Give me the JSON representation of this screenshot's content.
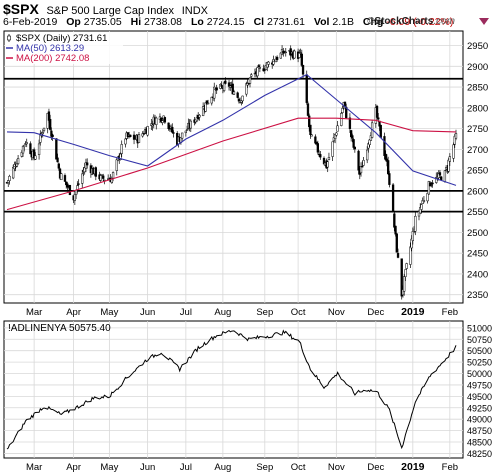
{
  "header": {
    "symbol": "$SPX",
    "name": "S&P 500 Large Cap Index",
    "exchange": "INDX",
    "date": "6-Feb-2019",
    "open_label": "Op",
    "open": "2735.05",
    "high_label": "Hi",
    "high": "2738.08",
    "low_label": "Lo",
    "low": "2724.15",
    "close_label": "Cl",
    "close": "2731.61",
    "volume_label": "Vol",
    "volume": "2.1B",
    "change_label": "Chg",
    "change": "-6.09 (-0.22%)",
    "change_color": "#c00000",
    "dropdown_icon": "triangle-down-icon"
  },
  "brand": {
    "prefix": "©",
    "name": "StockCharts",
    "suffix": ".com"
  },
  "legend": {
    "price": "$SPX (Daily) 2731.61",
    "ma50": "MA(50) 2613.29",
    "ma200": "MA(200) 2742.08"
  },
  "indicator_label": "!ADLINENYA 50575.40",
  "colors": {
    "candle": "#000000",
    "ma50": "#3333aa",
    "ma200": "#cc1144",
    "grid": "#d8d8d8"
  },
  "chart_data": [
    {
      "type": "line",
      "title": "$SPX (Daily) 2731.61",
      "x_tick_labels": [
        "Mar",
        "Apr",
        "May",
        "Jun",
        "Jul",
        "Aug",
        "Sep",
        "Oct",
        "Nov",
        "Dec",
        "2019",
        "Feb"
      ],
      "ylim": [
        2330,
        2985
      ],
      "y_ticks": [
        2350,
        2400,
        2450,
        2500,
        2550,
        2600,
        2650,
        2700,
        2750,
        2800,
        2850,
        2900,
        2950
      ],
      "grid": true,
      "horizontal_lines": [
        2870,
        2600,
        2550
      ],
      "series": [
        {
          "name": "$SPX (Daily) 2731.61",
          "style": "candlestick",
          "x": [
            "2018-02-07",
            "2018-02-22",
            "2018-03-01",
            "2018-03-12",
            "2018-03-22",
            "2018-04-02",
            "2018-04-12",
            "2018-04-24",
            "2018-05-03",
            "2018-05-14",
            "2018-05-24",
            "2018-06-06",
            "2018-06-14",
            "2018-06-25",
            "2018-07-06",
            "2018-07-16",
            "2018-07-25",
            "2018-08-06",
            "2018-08-15",
            "2018-08-24",
            "2018-09-04",
            "2018-09-20",
            "2018-10-03",
            "2018-10-11",
            "2018-10-24",
            "2018-11-07",
            "2018-11-20",
            "2018-12-03",
            "2018-12-13",
            "2018-12-24",
            "2019-01-04",
            "2019-01-16",
            "2019-01-28",
            "2019-02-06"
          ],
          "values": [
            2620,
            2720,
            2680,
            2785,
            2640,
            2585,
            2665,
            2630,
            2630,
            2730,
            2725,
            2770,
            2780,
            2720,
            2760,
            2800,
            2840,
            2855,
            2820,
            2875,
            2900,
            2935,
            2925,
            2730,
            2660,
            2810,
            2640,
            2790,
            2650,
            2351,
            2530,
            2620,
            2640,
            2731.61
          ]
        },
        {
          "name": "MA(50) 2613.29",
          "x": [
            "2018-02-07",
            "2018-03-01",
            "2018-04-02",
            "2018-05-01",
            "2018-06-01",
            "2018-07-02",
            "2018-08-01",
            "2018-09-04",
            "2018-10-08",
            "2018-11-01",
            "2018-12-03",
            "2019-01-02",
            "2019-02-06"
          ],
          "values": [
            2742,
            2740,
            2712,
            2685,
            2660,
            2725,
            2770,
            2830,
            2880,
            2820,
            2740,
            2648,
            2613.29
          ]
        },
        {
          "name": "MA(200) 2742.08",
          "x": [
            "2018-02-07",
            "2018-04-02",
            "2018-06-01",
            "2018-08-01",
            "2018-10-01",
            "2018-11-01",
            "2018-12-03",
            "2019-01-02",
            "2019-02-06"
          ],
          "values": [
            2555,
            2600,
            2655,
            2720,
            2775,
            2775,
            2770,
            2745,
            2742.08
          ]
        }
      ]
    },
    {
      "type": "line",
      "title": "!ADLINENYA 50575.40",
      "x_tick_labels": [
        "Mar",
        "Apr",
        "May",
        "Jun",
        "Jul",
        "Aug",
        "Sep",
        "Oct",
        "Nov",
        "Dec",
        "2019",
        "Feb"
      ],
      "ylim": [
        48150,
        51150
      ],
      "y_ticks": [
        48250,
        48500,
        48750,
        49000,
        49250,
        49500,
        49750,
        50000,
        50250,
        50500,
        50750,
        51000
      ],
      "grid": true,
      "series": [
        {
          "name": "!ADLINENYA 50575.40",
          "x": [
            "2018-02-07",
            "2018-02-22",
            "2018-03-09",
            "2018-03-23",
            "2018-04-04",
            "2018-04-18",
            "2018-05-01",
            "2018-05-15",
            "2018-05-31",
            "2018-06-12",
            "2018-06-27",
            "2018-07-12",
            "2018-07-26",
            "2018-08-09",
            "2018-08-22",
            "2018-09-06",
            "2018-09-20",
            "2018-10-02",
            "2018-10-11",
            "2018-10-22",
            "2018-11-02",
            "2018-11-16",
            "2018-11-26",
            "2018-12-04",
            "2018-12-14",
            "2018-12-24",
            "2019-01-04",
            "2019-01-16",
            "2019-01-28",
            "2019-02-06"
          ],
          "values": [
            48320,
            48950,
            49280,
            49100,
            49250,
            49460,
            49500,
            49900,
            50300,
            50470,
            50100,
            50560,
            50820,
            50950,
            50750,
            50820,
            50900,
            50700,
            50100,
            49700,
            50000,
            49560,
            49650,
            49600,
            49200,
            48380,
            49380,
            49950,
            50300,
            50575.4
          ]
        }
      ]
    }
  ]
}
